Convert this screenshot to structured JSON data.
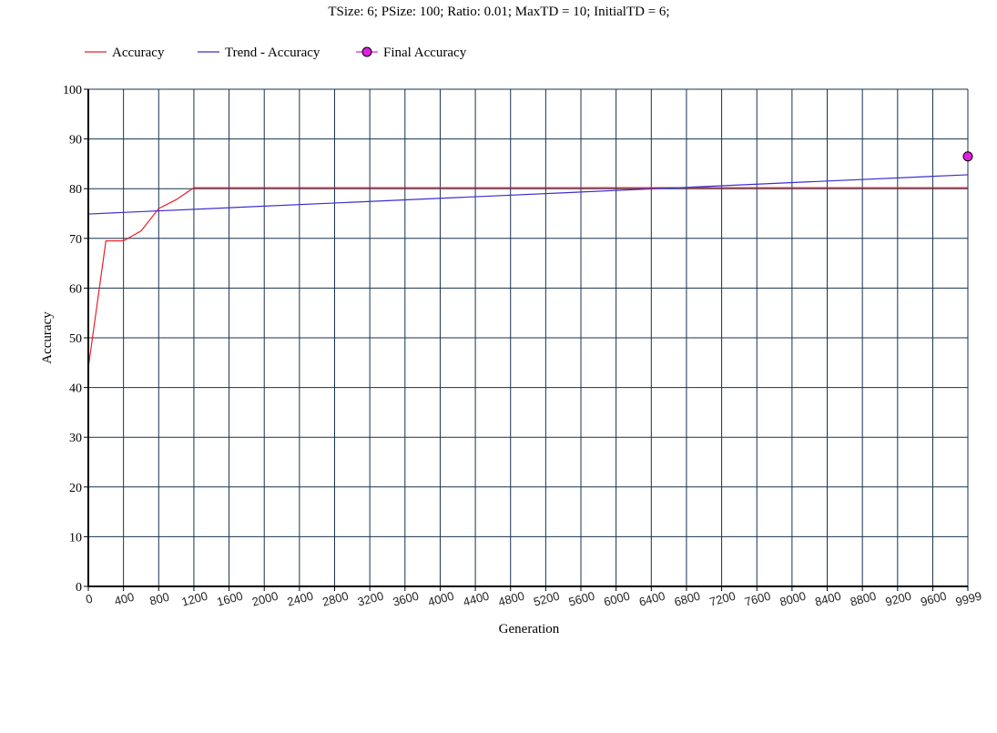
{
  "chart_data": {
    "type": "line",
    "title": "TSize: 6; PSize: 100; Ratio: 0.01; MaxTD = 10; InitialTD = 6;",
    "xlabel": "Generation",
    "ylabel": "Accuracy",
    "xlim": [
      0,
      9999
    ],
    "ylim": [
      0,
      100
    ],
    "grid": true,
    "legend_position": "top-left",
    "x_ticks": [
      0,
      400,
      800,
      1200,
      1600,
      2000,
      2400,
      2800,
      3200,
      3600,
      4000,
      4400,
      4800,
      5200,
      5600,
      6000,
      6400,
      6800,
      7200,
      7600,
      8000,
      8400,
      8800,
      9200,
      9600,
      9999
    ],
    "x_tick_labels": [
      "0",
      "400",
      "800",
      "1200",
      "1600",
      "2000",
      "2400",
      "2800",
      "3200",
      "3600",
      "4000",
      "4400",
      "4800",
      "5200",
      "5600",
      "6000",
      "6400",
      "6800",
      "7200",
      "7600",
      "8000",
      "8400",
      "8800",
      "9200",
      "9600",
      "9999"
    ],
    "y_ticks": [
      0,
      10,
      20,
      30,
      40,
      50,
      60,
      70,
      80,
      90,
      100
    ],
    "y_tick_labels": [
      "0",
      "10",
      "20",
      "30",
      "40",
      "50",
      "60",
      "70",
      "80",
      "90",
      "100"
    ],
    "series": [
      {
        "name": "Accuracy",
        "color": "#e8202a",
        "marker": "none",
        "x": [
          0,
          200,
          400,
          600,
          800,
          1000,
          1200,
          9999
        ],
        "y": [
          44,
          69.5,
          69.5,
          71.5,
          76,
          77.8,
          80.2,
          80.2
        ]
      },
      {
        "name": "Trend - Accuracy",
        "color": "#3a2fd0",
        "marker": "none",
        "x": [
          0,
          9999
        ],
        "y": [
          74.9,
          82.8
        ]
      },
      {
        "name": "Final Accuracy",
        "color": "#e020e0",
        "marker": "circle",
        "x": [
          9999
        ],
        "y": [
          86.5
        ]
      }
    ]
  }
}
